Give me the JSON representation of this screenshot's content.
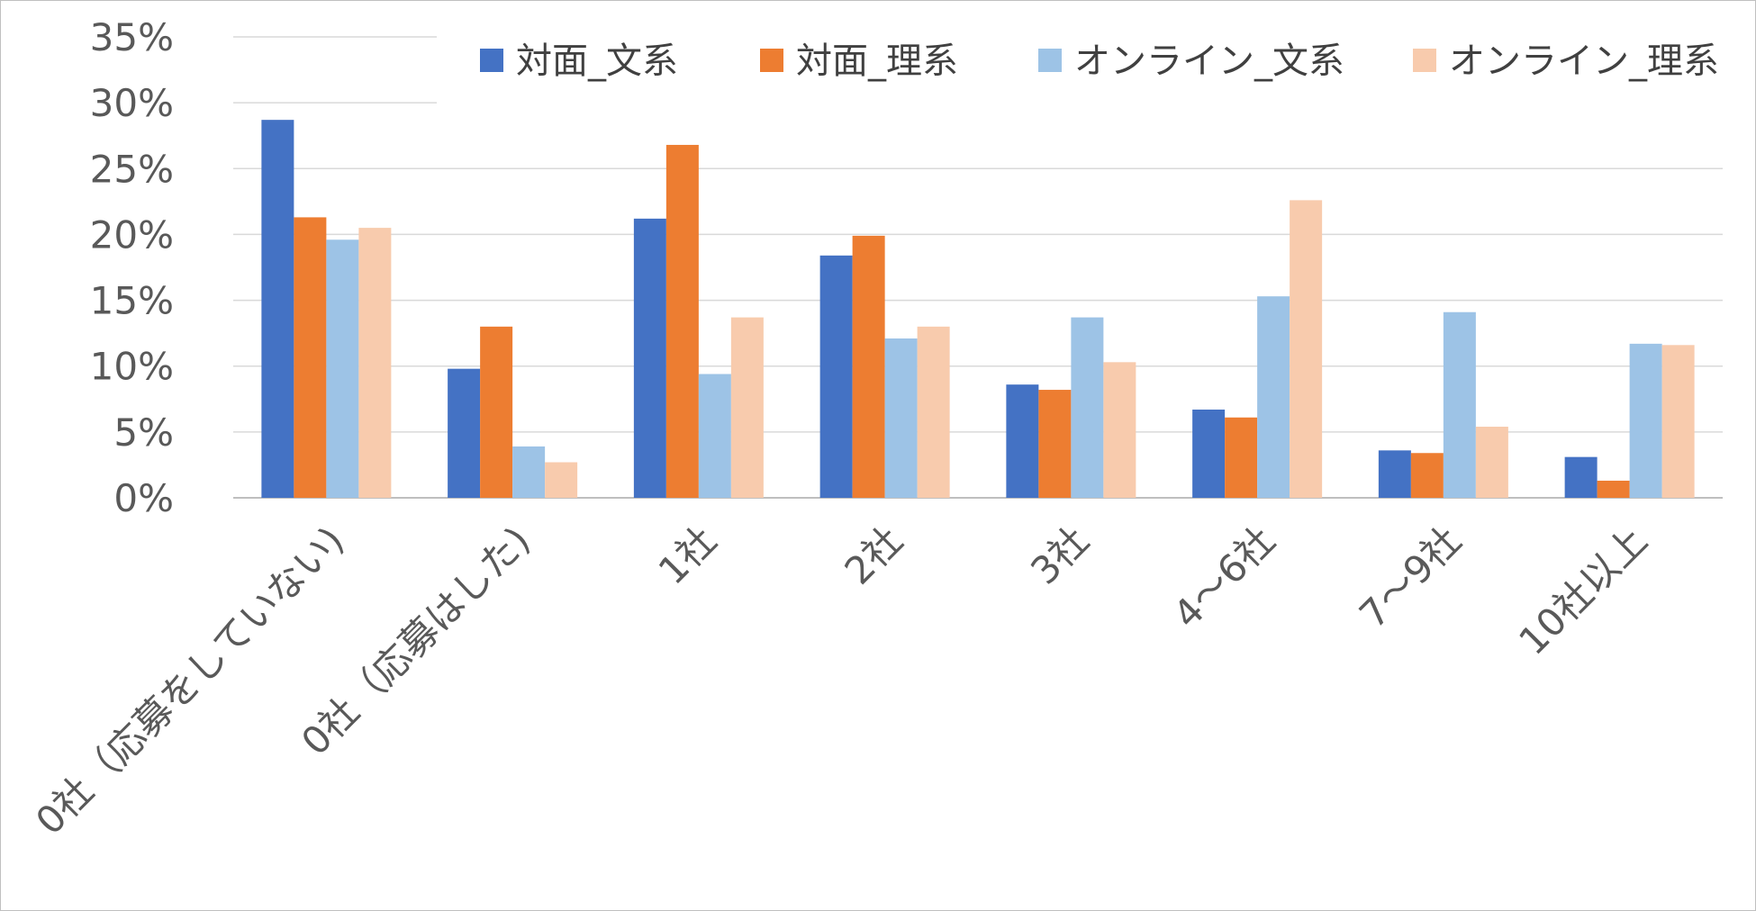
{
  "chart_data": {
    "type": "bar",
    "categories": [
      "0社（応募をしていない)",
      "0社（応募はした)",
      "1社",
      "2社",
      "3社",
      "4～6社",
      "7～9社",
      "10社以上"
    ],
    "series": [
      {
        "name": "対面_文系",
        "color": "#4472C4",
        "values": [
          28.7,
          9.8,
          21.2,
          18.4,
          8.6,
          6.7,
          3.6,
          3.1
        ]
      },
      {
        "name": "対面_理系",
        "color": "#ED7D31",
        "values": [
          21.3,
          13.0,
          26.8,
          19.9,
          8.2,
          6.1,
          3.4,
          1.3
        ]
      },
      {
        "name": "オンライン_文系",
        "color": "#9DC3E6",
        "values": [
          19.6,
          3.9,
          9.4,
          12.1,
          13.7,
          15.3,
          14.1,
          11.7
        ]
      },
      {
        "name": "オンライン_理系",
        "color": "#F8CBAD",
        "values": [
          20.5,
          2.7,
          13.7,
          13.0,
          10.3,
          22.6,
          5.4,
          11.6
        ]
      }
    ],
    "y_ticks": [
      "0%",
      "5%",
      "10%",
      "15%",
      "20%",
      "25%",
      "30%",
      "35%"
    ],
    "ylim": [
      0,
      35
    ],
    "title": "",
    "xlabel": "",
    "ylabel": "",
    "grid": true,
    "legend_position": "top-right"
  }
}
